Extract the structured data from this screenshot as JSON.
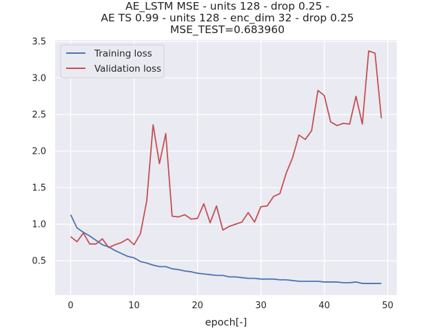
{
  "chart_data": {
    "type": "line",
    "title_lines": [
      "AE_LSTM MSE - units 128 - drop 0.25 -",
      "AE TS 0.99 - units 128 - enc_dim 32 - drop 0.25",
      "MSE_TEST=0.683960"
    ],
    "xlabel": "epoch[-]",
    "ylabel": "",
    "xlim": [
      -2.45,
      51.45
    ],
    "ylim": [
      0.03,
      3.52
    ],
    "x_ticks": [
      0,
      10,
      20,
      30,
      40,
      50
    ],
    "y_ticks": [
      0.5,
      1.0,
      1.5,
      2.0,
      2.5,
      3.0,
      3.5
    ],
    "y_tick_labels": [
      "0.5",
      "1.0",
      "1.5",
      "2.0",
      "2.5",
      "3.0",
      "3.5"
    ],
    "grid": true,
    "legend_position": "top-left",
    "x": [
      0,
      1,
      2,
      3,
      4,
      5,
      6,
      7,
      8,
      9,
      10,
      11,
      12,
      13,
      14,
      15,
      16,
      17,
      18,
      19,
      20,
      21,
      22,
      23,
      24,
      25,
      26,
      27,
      28,
      29,
      30,
      31,
      32,
      33,
      34,
      35,
      36,
      37,
      38,
      39,
      40,
      41,
      42,
      43,
      44,
      45,
      46,
      47,
      48,
      49
    ],
    "series": [
      {
        "name": "Training loss",
        "color": "#4c72b0",
        "values": [
          1.13,
          0.95,
          0.89,
          0.84,
          0.78,
          0.72,
          0.69,
          0.64,
          0.6,
          0.56,
          0.54,
          0.49,
          0.47,
          0.44,
          0.42,
          0.42,
          0.39,
          0.38,
          0.36,
          0.35,
          0.33,
          0.32,
          0.31,
          0.3,
          0.3,
          0.28,
          0.28,
          0.27,
          0.26,
          0.26,
          0.25,
          0.25,
          0.25,
          0.24,
          0.24,
          0.23,
          0.22,
          0.22,
          0.22,
          0.22,
          0.21,
          0.21,
          0.21,
          0.2,
          0.2,
          0.21,
          0.19,
          0.19,
          0.19,
          0.19
        ]
      },
      {
        "name": "Validation loss",
        "color": "#c44e52",
        "values": [
          0.83,
          0.76,
          0.88,
          0.73,
          0.73,
          0.8,
          0.68,
          0.72,
          0.75,
          0.8,
          0.72,
          0.87,
          1.32,
          2.36,
          1.83,
          2.24,
          1.11,
          1.1,
          1.13,
          1.07,
          1.08,
          1.28,
          1.02,
          1.25,
          0.92,
          0.97,
          1.0,
          1.03,
          1.16,
          1.03,
          1.24,
          1.25,
          1.38,
          1.42,
          1.7,
          1.91,
          2.22,
          2.16,
          2.28,
          2.83,
          2.76,
          2.4,
          2.35,
          2.38,
          2.37,
          2.75,
          2.37,
          3.37,
          3.34,
          2.45
        ]
      }
    ]
  }
}
